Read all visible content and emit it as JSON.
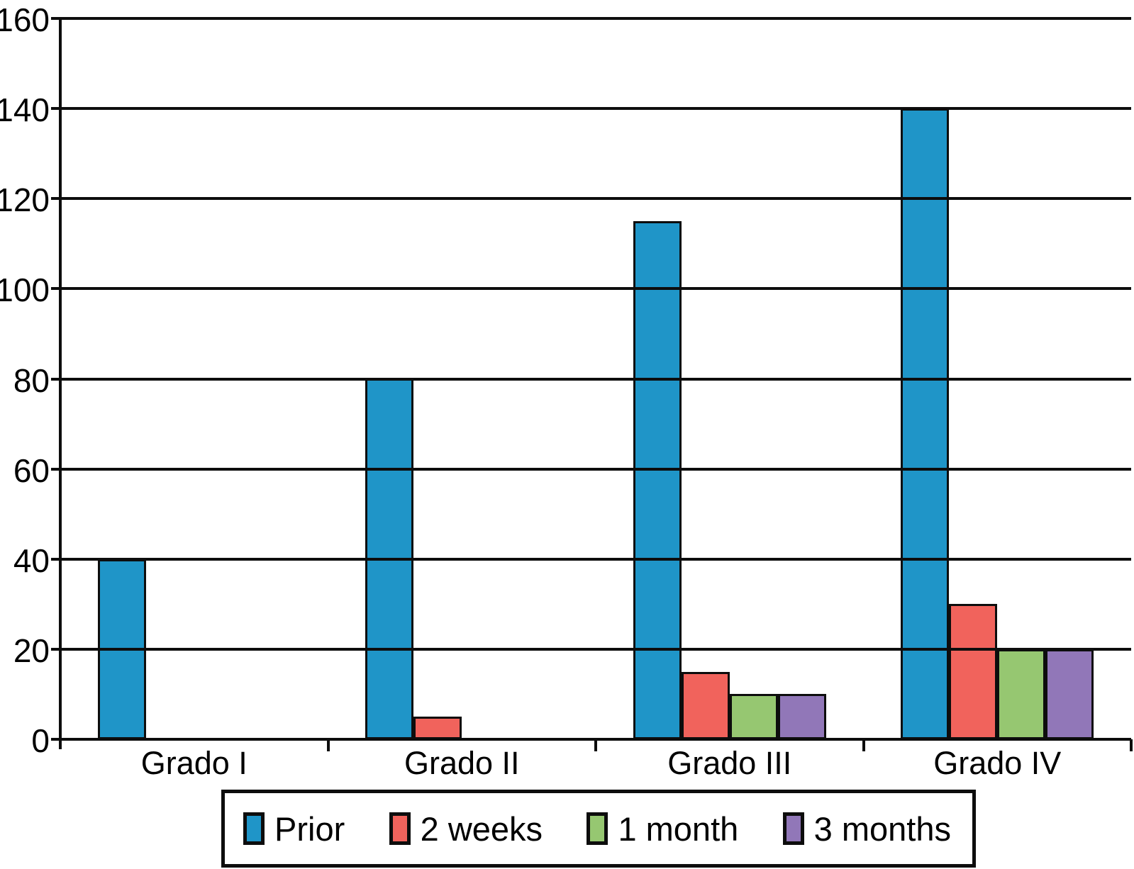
{
  "chart_data": {
    "type": "bar",
    "title": "",
    "xlabel": "",
    "ylabel": "",
    "categories": [
      "Grado I",
      "Grado II",
      "Grado III",
      "Grado IV"
    ],
    "series": [
      {
        "name": "Prior",
        "color": "#1F95C8",
        "values": [
          40,
          80,
          115,
          140
        ]
      },
      {
        "name": "2 weeks",
        "color": "#F1635C",
        "values": [
          0,
          5,
          15,
          30
        ]
      },
      {
        "name": "1 month",
        "color": "#96C771",
        "values": [
          0,
          0,
          10,
          20
        ]
      },
      {
        "name": "3 months",
        "color": "#9177B8",
        "values": [
          0,
          0,
          10,
          20
        ]
      }
    ],
    "ylim": [
      0,
      160
    ],
    "yticks": [
      0,
      20,
      40,
      60,
      80,
      100,
      120,
      140,
      160
    ],
    "grid": "horizontal",
    "gridline_color": "#0d0d0d",
    "legend_position": "bottom"
  }
}
